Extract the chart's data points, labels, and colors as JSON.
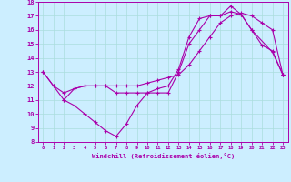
{
  "xlabel": "Windchill (Refroidissement éolien,°C)",
  "bg_color": "#cceeff",
  "line_color": "#aa00aa",
  "grid_color": "#aadddd",
  "xlim": [
    -0.5,
    23.5
  ],
  "ylim": [
    8,
    18
  ],
  "xticks": [
    0,
    1,
    2,
    3,
    4,
    5,
    6,
    7,
    8,
    9,
    10,
    11,
    12,
    13,
    14,
    15,
    16,
    17,
    18,
    19,
    20,
    21,
    22,
    23
  ],
  "yticks": [
    8,
    9,
    10,
    11,
    12,
    13,
    14,
    15,
    16,
    17,
    18
  ],
  "series1_x": [
    0,
    1,
    2,
    3,
    4,
    5,
    6,
    7,
    8,
    9,
    10,
    11,
    12,
    13,
    14,
    15,
    16,
    17,
    18,
    19,
    20,
    21,
    22,
    23
  ],
  "series1_y": [
    13,
    12,
    11,
    10.6,
    10,
    9.4,
    8.8,
    8.4,
    9.3,
    10.6,
    11.5,
    11.5,
    11.5,
    13,
    15,
    16,
    17,
    17,
    17.7,
    17.1,
    16,
    14.9,
    14.5,
    12.8
  ],
  "series2_x": [
    0,
    1,
    2,
    3,
    4,
    5,
    6,
    7,
    8,
    9,
    10,
    11,
    12,
    13,
    14,
    15,
    16,
    17,
    18,
    19,
    20,
    21,
    22,
    23
  ],
  "series2_y": [
    13,
    12,
    11.5,
    11.8,
    12,
    12,
    12,
    12,
    12,
    12,
    12.2,
    12.4,
    12.6,
    12.8,
    13.5,
    14.5,
    15.5,
    16.5,
    17,
    17.2,
    17,
    16.5,
    16,
    12.8
  ],
  "series3_x": [
    2,
    3,
    4,
    5,
    6,
    7,
    8,
    9,
    10,
    11,
    12,
    13,
    14,
    15,
    16,
    17,
    18,
    19,
    20,
    22,
    23
  ],
  "series3_y": [
    11,
    11.8,
    12,
    12,
    12,
    11.5,
    11.5,
    11.5,
    11.5,
    11.8,
    12,
    13.2,
    15.5,
    16.8,
    17,
    17,
    17.3,
    17.1,
    16,
    14.4,
    12.8
  ]
}
